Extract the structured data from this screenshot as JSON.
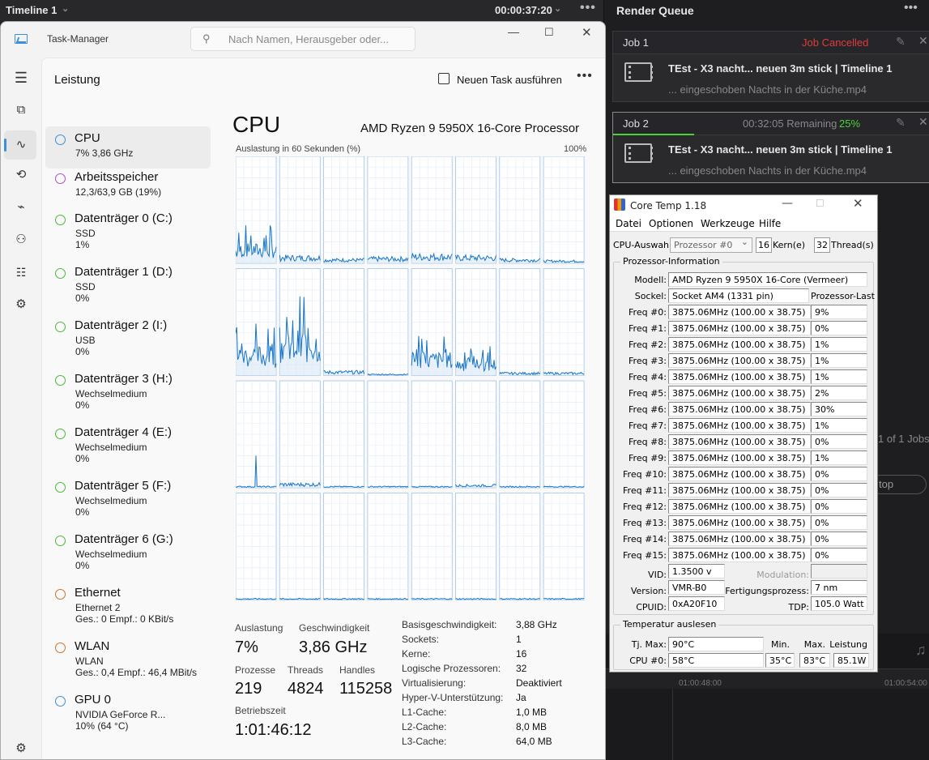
{
  "resolve": {
    "timeline_title": "Timeline 1",
    "timecode": "00:00:37:20",
    "render_queue_title": "Render Queue",
    "jobs": [
      {
        "name": "Job 1",
        "status": "Job Cancelled",
        "status_color": "#e03b3b",
        "remaining": "",
        "progress": "",
        "title": "TEst - X3 nacht... neuen 3m stick | Timeline 1",
        "file": "... eingeschoben Nachts in der Küche.mp4"
      },
      {
        "name": "Job 2",
        "status": "",
        "remaining": "00:32:05 Remaining",
        "progress": "25%",
        "progress_color": "#4cd137",
        "title": "TEst - X3 nacht... neuen 3m stick | Timeline 1",
        "file": "... eingeschoben Nachts in der Küche.mp4"
      }
    ],
    "jobs_count": "1 of 1 Jobs",
    "stop_label": "top",
    "timeline_ruler": [
      "01:00:48:00",
      "01:00:54:00"
    ]
  },
  "taskmanager": {
    "window_title": "Task-Manager",
    "search_placeholder": "Nach Namen, Herausgeber oder...",
    "section_title": "Leistung",
    "new_task_label": "Neuen Task ausführen",
    "sidebar": [
      {
        "name": "CPU",
        "s1": "7% 3,86 GHz",
        "s2": "",
        "color": "#3a8fd8",
        "selected": true
      },
      {
        "name": "Arbeitsspeicher",
        "s1": "12,3/63,9 GB (19%)",
        "s2": "",
        "color": "#b04fc4"
      },
      {
        "name": "Datenträger 0 (C:)",
        "s1": "SSD",
        "s2": "1%",
        "color": "#4cb83c"
      },
      {
        "name": "Datenträger 1 (D:)",
        "s1": "SSD",
        "s2": "0%",
        "color": "#4cb83c"
      },
      {
        "name": "Datenträger 2 (I:)",
        "s1": "USB",
        "s2": "0%",
        "color": "#4cb83c"
      },
      {
        "name": "Datenträger 3 (H:)",
        "s1": "Wechselmedium",
        "s2": "0%",
        "color": "#4cb83c"
      },
      {
        "name": "Datenträger 4 (E:)",
        "s1": "Wechselmedium",
        "s2": "0%",
        "color": "#4cb83c"
      },
      {
        "name": "Datenträger 5 (F:)",
        "s1": "Wechselmedium",
        "s2": "0%",
        "color": "#4cb83c"
      },
      {
        "name": "Datenträger 6 (G:)",
        "s1": "Wechselmedium",
        "s2": "0%",
        "color": "#4cb83c"
      },
      {
        "name": "Ethernet",
        "s1": "Ethernet 2",
        "s2": "Ges.: 0 Empf.: 0 KBit/s",
        "color": "#c8742e"
      },
      {
        "name": "WLAN",
        "s1": "WLAN",
        "s2": "Ges.: 0,4 Empf.: 46,4 MBit/s",
        "color": "#c8742e"
      },
      {
        "name": "GPU 0",
        "s1": "NVIDIA GeForce R...",
        "s2": "10% (64 °C)",
        "color": "#3a8fd8"
      }
    ],
    "cpu_heading": "CPU",
    "cpu_model": "AMD Ryzen 9 5950X 16-Core Processor",
    "graph_label": "Auslastung in 60 Sekunden (%)",
    "graph_max": "100%",
    "stats": {
      "util_label": "Auslastung",
      "util": "7%",
      "speed_label": "Geschwindigkeit",
      "speed": "3,86 GHz",
      "proc_label": "Prozesse",
      "proc": "219",
      "threads_label": "Threads",
      "threads": "4824",
      "handles_label": "Handles",
      "handles": "115258",
      "uptime_label": "Betriebszeit",
      "uptime": "1:01:46:12"
    },
    "details": [
      {
        "k": "Basisgeschwindigkeit:",
        "v": "3,88 GHz"
      },
      {
        "k": "Sockets:",
        "v": "1"
      },
      {
        "k": "Kerne:",
        "v": "16"
      },
      {
        "k": "Logische Prozessoren:",
        "v": "32"
      },
      {
        "k": "Virtualisierung:",
        "v": "Deaktiviert"
      },
      {
        "k": "Hyper-V-Unterstützung:",
        "v": "Ja"
      },
      {
        "k": "L1-Cache:",
        "v": "1,0 MB"
      },
      {
        "k": "L2-Cache:",
        "v": "8,0 MB"
      },
      {
        "k": "L3-Cache:",
        "v": "64,0 MB"
      }
    ],
    "graph_level_percent": [
      12,
      5,
      3,
      4,
      6,
      5,
      3,
      2,
      18,
      28,
      3,
      1,
      14,
      10,
      2,
      2,
      1,
      3,
      1,
      1,
      1,
      2,
      1,
      1,
      1,
      1,
      1,
      1,
      1,
      1,
      1,
      1
    ]
  },
  "coretemp": {
    "title": "Core Temp 1.18",
    "menu": [
      "Datei",
      "Optionen",
      "Werkzeuge",
      "Hilfe"
    ],
    "cpu_select_label": "CPU-Auswahl:",
    "cpu_select_value": "Prozessor #0",
    "cores": "16",
    "cores_label": "Kern(e)",
    "threads": "32",
    "threads_label": "Thread(s)",
    "info_group": "Prozessor-Information",
    "model_label": "Modell:",
    "model": "AMD Ryzen 9 5950X 16-Core (Vermeer)",
    "socket_label": "Sockel:",
    "socket": "Socket AM4 (1331 pin)",
    "load_header": "Prozessor-Last",
    "freqs": [
      {
        "label": "Freq #0:",
        "value": "3875.06MHz (100.00 x 38.75)",
        "load": "9%"
      },
      {
        "label": "Freq #1:",
        "value": "3875.06MHz (100.00 x 38.75)",
        "load": "0%"
      },
      {
        "label": "Freq #2:",
        "value": "3875.06MHz (100.00 x 38.75)",
        "load": "1%"
      },
      {
        "label": "Freq #3:",
        "value": "3875.06MHz (100.00 x 38.75)",
        "load": "1%"
      },
      {
        "label": "Freq #4:",
        "value": "3875.06MHz (100.00 x 38.75)",
        "load": "1%"
      },
      {
        "label": "Freq #5:",
        "value": "3875.06MHz (100.00 x 38.75)",
        "load": "2%"
      },
      {
        "label": "Freq #6:",
        "value": "3875.06MHz (100.00 x 38.75)",
        "load": "30%"
      },
      {
        "label": "Freq #7:",
        "value": "3875.06MHz (100.00 x 38.75)",
        "load": "1%"
      },
      {
        "label": "Freq #8:",
        "value": "3875.06MHz (100.00 x 38.75)",
        "load": "0%"
      },
      {
        "label": "Freq #9:",
        "value": "3875.06MHz (100.00 x 38.75)",
        "load": "1%"
      },
      {
        "label": "Freq #10:",
        "value": "3875.06MHz (100.00 x 38.75)",
        "load": "0%"
      },
      {
        "label": "Freq #11:",
        "value": "3875.06MHz (100.00 x 38.75)",
        "load": "0%"
      },
      {
        "label": "Freq #12:",
        "value": "3875.06MHz (100.00 x 38.75)",
        "load": "0%"
      },
      {
        "label": "Freq #13:",
        "value": "3875.06MHz (100.00 x 38.75)",
        "load": "0%"
      },
      {
        "label": "Freq #14:",
        "value": "3875.06MHz (100.00 x 38.75)",
        "load": "0%"
      },
      {
        "label": "Freq #15:",
        "value": "3875.06MHz (100.00 x 38.75)",
        "load": "0%"
      }
    ],
    "vid_label": "VID:",
    "vid": "1.3500 v",
    "modulation_label": "Modulation:",
    "version_label": "Version:",
    "version": "VMR-B0",
    "process_label": "Fertigungsprozess:",
    "process": "7 nm",
    "cpuid_label": "CPUID:",
    "cpuid": "0xA20F10",
    "tdp_label": "TDP:",
    "tdp": "105.0 Watt",
    "temp_group": "Temperatur auslesen",
    "tjmax_label": "Tj. Max:",
    "tjmax": "90°C",
    "min_label": "Min.",
    "max_label": "Max.",
    "power_label": "Leistung",
    "cpu0_label": "CPU #0:",
    "cpu0": "58°C",
    "min": "35°C",
    "max": "83°C",
    "power": "85.1W"
  }
}
